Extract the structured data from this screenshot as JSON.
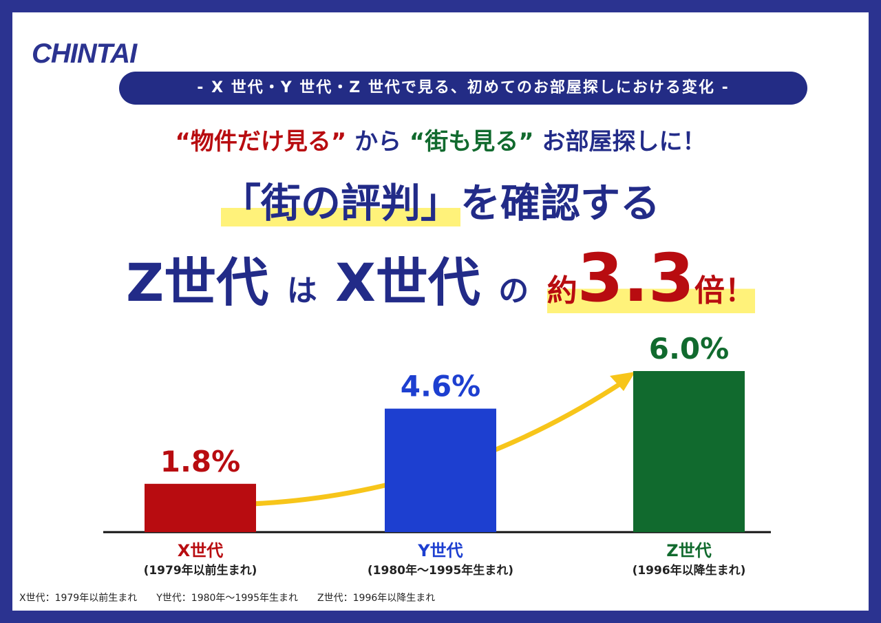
{
  "header": {
    "logo": "CHINTAI",
    "banner": "- X 世代・Y 世代・Z 世代で見る、初めてのお部屋探しにおける変化 -",
    "headline": {
      "line1": [
        "“物件だけ見る”",
        "から",
        "“街も見る”",
        "お部屋探しに！"
      ],
      "line2": [
        "「街の評判」",
        "を確認する"
      ],
      "line3": [
        "Z世代",
        "は",
        "X世代",
        "の",
        "約",
        3.3,
        "倍",
        "！"
      ]
    }
  },
  "chart_data": {
    "type": "bar",
    "categories": [
      "X世代",
      "Y世代",
      "Z世代"
    ],
    "category_notes": [
      "(1979年以前生まれ)",
      "(1980年〜1995年生まれ)",
      "(1996年以降生まれ)"
    ],
    "values": [
      1.8,
      4.6,
      6.0
    ],
    "value_labels": [
      "1.8%",
      "4.6%",
      "6.0%"
    ],
    "colors": [
      "#b80c10",
      "#1d3fd0",
      "#116a2e"
    ]
  },
  "footnotes": [
    "X世代：1979年以前生まれ",
    "Y世代：1980年〜1995年生まれ",
    "Z世代：1996年以降生まれ"
  ]
}
